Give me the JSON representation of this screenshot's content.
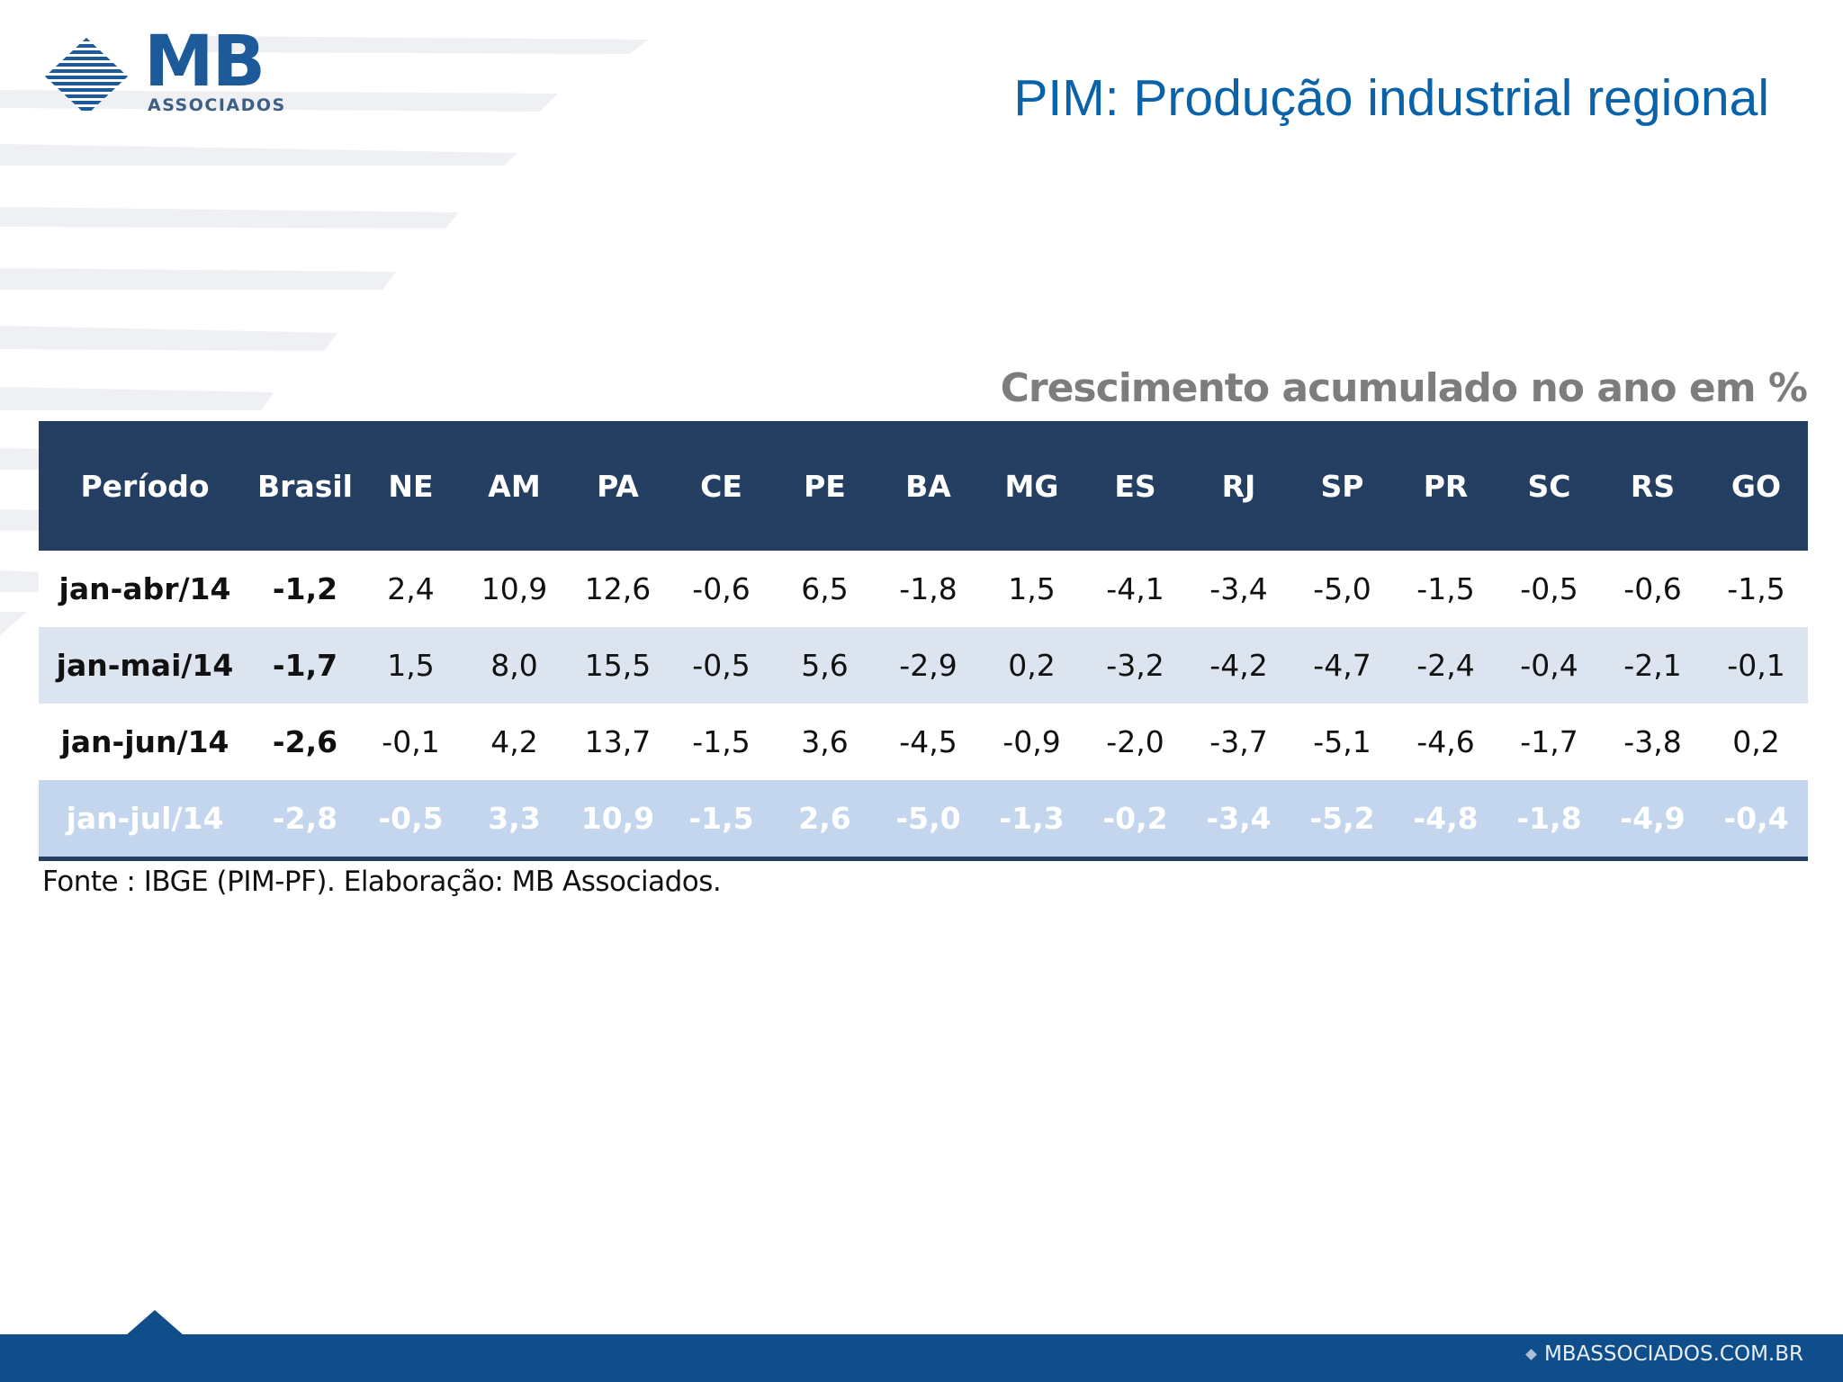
{
  "logo": {
    "main": "MB",
    "sub": "ASSOCIADOS"
  },
  "title": "PIM: Produção industrial regional",
  "caption": "Crescimento acumulado no ano em %",
  "table": {
    "headers": [
      "Período",
      "Brasil",
      "NE",
      "AM",
      "PA",
      "CE",
      "PE",
      "BA",
      "MG",
      "ES",
      "RJ",
      "SP",
      "PR",
      "SC",
      "RS",
      "GO"
    ],
    "rows": [
      [
        "jan-abr/14",
        "-1,2",
        "2,4",
        "10,9",
        "12,6",
        "-0,6",
        "6,5",
        "-1,8",
        "1,5",
        "-4,1",
        "-3,4",
        "-5,0",
        "-1,5",
        "-0,5",
        "-0,6",
        "-1,5"
      ],
      [
        "jan-mai/14",
        "-1,7",
        "1,5",
        "8,0",
        "15,5",
        "-0,5",
        "5,6",
        "-2,9",
        "0,2",
        "-3,2",
        "-4,2",
        "-4,7",
        "-2,4",
        "-0,4",
        "-2,1",
        "-0,1"
      ],
      [
        "jan-jun/14",
        "-2,6",
        "-0,1",
        "4,2",
        "13,7",
        "-1,5",
        "3,6",
        "-4,5",
        "-0,9",
        "-2,0",
        "-3,7",
        "-5,1",
        "-4,6",
        "-1,7",
        "-3,8",
        "0,2"
      ],
      [
        "jan-jul/14",
        "-2,8",
        "-0,5",
        "3,3",
        "10,9",
        "-1,5",
        "2,6",
        "-5,0",
        "-1,3",
        "-0,2",
        "-3,4",
        "-5,2",
        "-4,8",
        "-1,8",
        "-4,9",
        "-0,4"
      ]
    ]
  },
  "source": "Fonte : IBGE (PIM-PF). Elaboração: MB Associados.",
  "footer": {
    "site": "MBASSOCIADOS.COM.BR"
  },
  "colors": {
    "title": "#0a62a8",
    "header_bg": "#253f63",
    "band_row": "#dbe4ef",
    "highlight_row": "#c3d6ee",
    "footer": "#0f4e8a"
  }
}
